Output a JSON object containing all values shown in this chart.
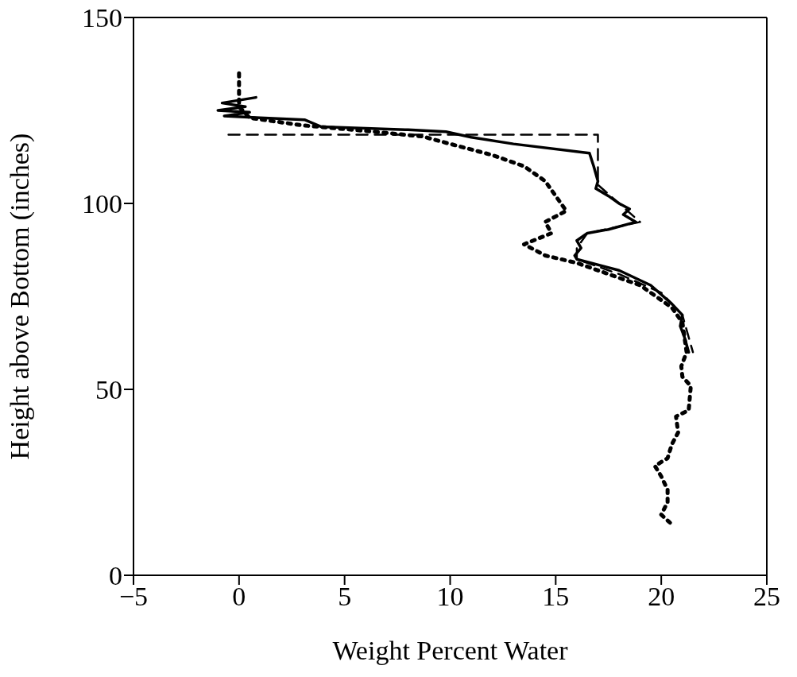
{
  "chart_data": {
    "type": "line",
    "xlabel": "Weight Percent Water",
    "ylabel": "Height above Bottom (inches)",
    "xlim": [
      -5,
      25
    ],
    "xticks": [
      -5,
      0,
      5,
      10,
      15,
      20,
      25
    ],
    "ylim": [
      0,
      150
    ],
    "yticks": [
      0,
      50,
      100,
      150
    ],
    "marker": "none",
    "series": [
      {
        "color": "#000000",
        "line_style": "solid",
        "x": [
          0.8,
          -0.8,
          0.3,
          -1,
          0.5,
          -0.7,
          1,
          3.1,
          3.9,
          6,
          8,
          9.8,
          11,
          13,
          16.6,
          16.8,
          17,
          16.9,
          17.5,
          18,
          18.5,
          18.2,
          18.8,
          17.5,
          16.5,
          16,
          16.2,
          15.9,
          16,
          18,
          19.5,
          20.5,
          21,
          20.9,
          21.1,
          21.3
        ],
        "values": [
          128.5,
          127,
          126,
          125,
          124.5,
          123.5,
          123,
          122.5,
          120.6,
          120.2,
          119.8,
          119.3,
          117.8,
          116,
          113.5,
          110,
          106,
          104,
          102,
          100,
          98.5,
          97,
          95,
          93,
          92,
          90,
          88,
          86,
          85,
          82,
          78,
          73,
          70,
          67,
          64,
          60
        ]
      },
      {
        "color": "#000000",
        "line_style": "dotted",
        "x": [
          0,
          0,
          0,
          0.5,
          3,
          6,
          8.7,
          10,
          12,
          13.5,
          14.5,
          15,
          15.5,
          14.5,
          14.8,
          13.5,
          14.5,
          16,
          17.5,
          19,
          20.5,
          21,
          21.2,
          20.95,
          21,
          21.4,
          21.3,
          20.7,
          20.8,
          20.5,
          20.3,
          19.7,
          20,
          20.3,
          20.3,
          20,
          20.5
        ],
        "values": [
          135,
          130,
          126,
          123,
          121,
          119.5,
          118,
          116,
          113,
          110,
          106,
          102,
          98,
          95,
          92,
          89,
          86,
          84,
          81,
          78,
          72,
          68,
          60,
          56.2,
          53.4,
          50.9,
          44.4,
          42.7,
          38.4,
          35.2,
          31.5,
          29.4,
          26.6,
          23,
          19.7,
          16.3,
          13.7
        ]
      },
      {
        "color": "#000000",
        "line_style": "dashed",
        "x": [
          -0.5,
          17,
          17,
          17,
          18,
          19,
          16.5,
          16,
          16,
          18,
          20,
          21,
          21.5
        ],
        "values": [
          118.5,
          118.5,
          113,
          105,
          100,
          95,
          92,
          88,
          85,
          81,
          76,
          70,
          60
        ]
      }
    ]
  }
}
